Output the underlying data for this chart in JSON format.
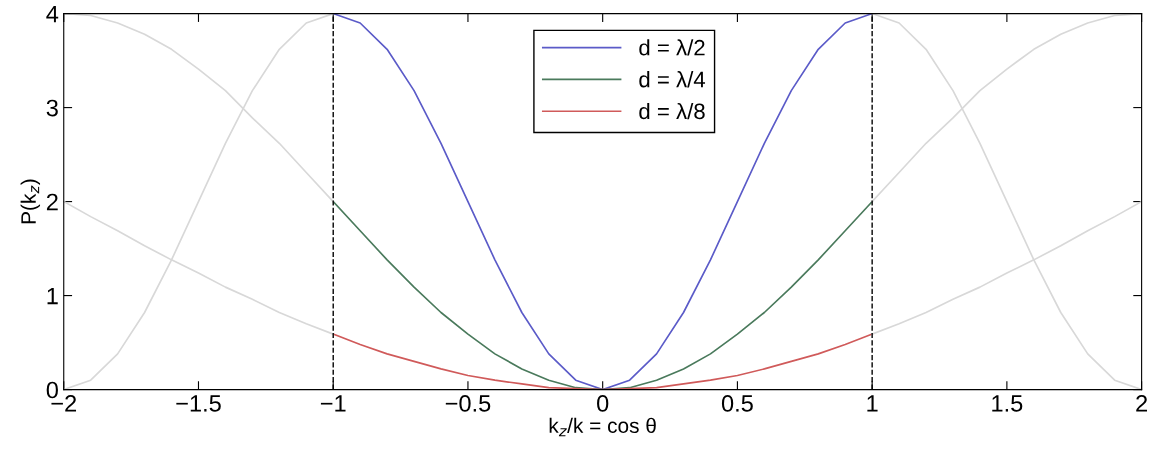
{
  "chart_data": {
    "type": "line",
    "xlabel": "k$_{z}$/k = cos θ",
    "ylabel": "P(k$_{z}$)",
    "xlim": [
      -2,
      2
    ],
    "ylim": [
      0,
      4
    ],
    "xticks": [
      {
        "value": -2,
        "label": "−2"
      },
      {
        "value": -1.5,
        "label": "−1.5"
      },
      {
        "value": -1,
        "label": "−1"
      },
      {
        "value": -0.5,
        "label": "−0.5"
      },
      0,
      0.5,
      1,
      1.5,
      2
    ],
    "yticks": [
      0,
      1,
      2,
      3,
      4
    ],
    "grid": false,
    "legend": "top",
    "marker": "none",
    "line_style": "solid",
    "ref_lines": [
      {
        "axis": "x",
        "value": -1,
        "color": "#000000",
        "line_style": "dashed"
      },
      {
        "axis": "x",
        "value": 1,
        "color": "#000000",
        "line_style": "dashed"
      }
    ],
    "series": [
      {
        "name": "d = λ/2",
        "color": "#5b5bc8",
        "x": [
          -1,
          -0.9,
          -0.8,
          -0.7,
          -0.6,
          -0.5,
          -0.4,
          -0.3,
          -0.2,
          -0.1,
          0,
          0.1,
          0.2,
          0.3,
          0.4,
          0.5,
          0.6,
          0.7,
          0.8,
          0.9,
          1
        ],
        "values": [
          4,
          3.9,
          3.62,
          3.18,
          2.62,
          2,
          1.38,
          0.82,
          0.38,
          0.1,
          0,
          0.1,
          0.38,
          0.82,
          1.38,
          2,
          2.62,
          3.18,
          3.62,
          3.9,
          4
        ]
      },
      {
        "name": "d = λ/4",
        "color": "#4a7a5c",
        "x": [
          -1,
          -0.9,
          -0.8,
          -0.7,
          -0.6,
          -0.5,
          -0.4,
          -0.3,
          -0.2,
          -0.1,
          0,
          0.1,
          0.2,
          0.3,
          0.4,
          0.5,
          0.6,
          0.7,
          0.8,
          0.9,
          1
        ],
        "values": [
          2,
          1.69,
          1.38,
          1.09,
          0.82,
          0.59,
          0.38,
          0.22,
          0.1,
          0.02,
          0,
          0.02,
          0.1,
          0.22,
          0.38,
          0.59,
          0.82,
          1.09,
          1.38,
          1.69,
          2
        ]
      },
      {
        "name": "d = λ/8",
        "color": "#d05a5a",
        "x": [
          -1,
          -0.9,
          -0.8,
          -0.7,
          -0.6,
          -0.5,
          -0.4,
          -0.3,
          -0.2,
          -0.1,
          0,
          0.1,
          0.2,
          0.3,
          0.4,
          0.5,
          0.6,
          0.7,
          0.8,
          0.9,
          1
        ],
        "values": [
          0.59,
          0.48,
          0.38,
          0.3,
          0.22,
          0.15,
          0.1,
          0.06,
          0.02,
          0.01,
          0,
          0.01,
          0.02,
          0.06,
          0.1,
          0.15,
          0.22,
          0.3,
          0.38,
          0.48,
          0.59
        ]
      },
      {
        "color": "#d8d8d8",
        "x": [
          -2,
          -1.9,
          -1.8,
          -1.7,
          -1.6,
          -1.5,
          -1.4,
          -1.3,
          -1.2,
          -1.1,
          -1,
          0,
          1,
          1.1,
          1.2,
          1.3,
          1.4,
          1.5,
          1.6,
          1.7,
          1.8,
          1.9,
          2
        ],
        "values": [
          0,
          0.1,
          0.38,
          0.82,
          1.38,
          2,
          2.62,
          3.18,
          3.62,
          3.9,
          4,
          null,
          4,
          3.9,
          3.62,
          3.18,
          2.62,
          2,
          1.38,
          0.82,
          0.38,
          0.1,
          0
        ]
      },
      {
        "color": "#d8d8d8",
        "x": [
          -2,
          -1.9,
          -1.8,
          -1.7,
          -1.6,
          -1.5,
          -1.4,
          -1.3,
          -1.2,
          -1.1,
          -1,
          0,
          1,
          1.1,
          1.2,
          1.3,
          1.4,
          1.5,
          1.6,
          1.7,
          1.8,
          1.9,
          2
        ],
        "values": [
          4,
          3.98,
          3.9,
          3.78,
          3.62,
          3.41,
          3.18,
          2.89,
          2.62,
          2.31,
          2,
          null,
          2,
          2.31,
          2.62,
          2.89,
          3.18,
          3.41,
          3.62,
          3.78,
          3.9,
          3.98,
          4
        ]
      },
      {
        "color": "#d8d8d8",
        "x": [
          -2,
          -1.9,
          -1.8,
          -1.7,
          -1.6,
          -1.5,
          -1.4,
          -1.3,
          -1.2,
          -1.1,
          -1,
          0,
          1,
          1.1,
          1.2,
          1.3,
          1.4,
          1.5,
          1.6,
          1.7,
          1.8,
          1.9,
          2
        ],
        "values": [
          2,
          1.84,
          1.69,
          1.53,
          1.38,
          1.24,
          1.09,
          0.96,
          0.82,
          0.7,
          0.59,
          null,
          0.59,
          0.7,
          0.82,
          0.96,
          1.09,
          1.24,
          1.38,
          1.53,
          1.69,
          1.84,
          2
        ]
      }
    ]
  }
}
